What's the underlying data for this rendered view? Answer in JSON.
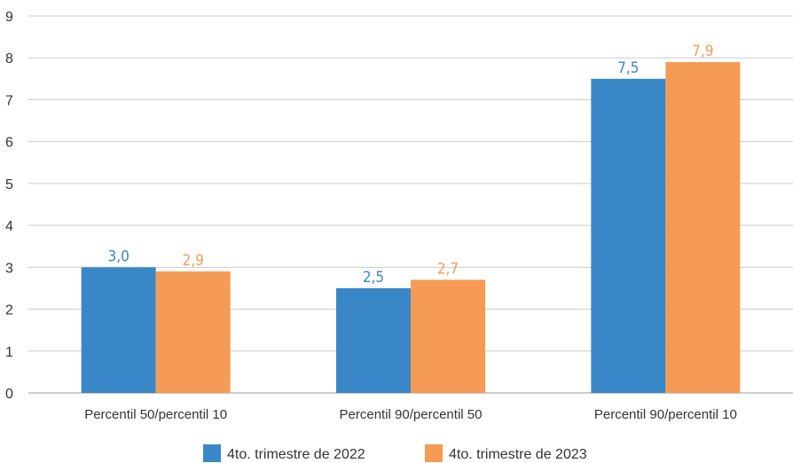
{
  "chart_data": {
    "type": "bar",
    "categories": [
      "Percentil 50/percentil 10",
      "Percentil 90/percentil 50",
      "Percentil 90/percentil 10"
    ],
    "series": [
      {
        "name": "4to. trimestre de 2022",
        "values": [
          3.0,
          2.5,
          7.5
        ],
        "labels": [
          "3,0",
          "2,5",
          "7,5"
        ],
        "color": "#3a87c8"
      },
      {
        "name": "4to. trimestre de 2023",
        "values": [
          2.9,
          2.7,
          7.9
        ],
        "labels": [
          "2,9",
          "2,7",
          "7,9"
        ],
        "color": "#f59b55"
      }
    ],
    "ylim": [
      0,
      9
    ],
    "yticks": [
      "0",
      "1",
      "2",
      "3",
      "4",
      "5",
      "6",
      "7",
      "8",
      "9"
    ],
    "grid": true,
    "legend_position": "bottom-center",
    "title": "",
    "xlabel": "",
    "ylabel": ""
  }
}
